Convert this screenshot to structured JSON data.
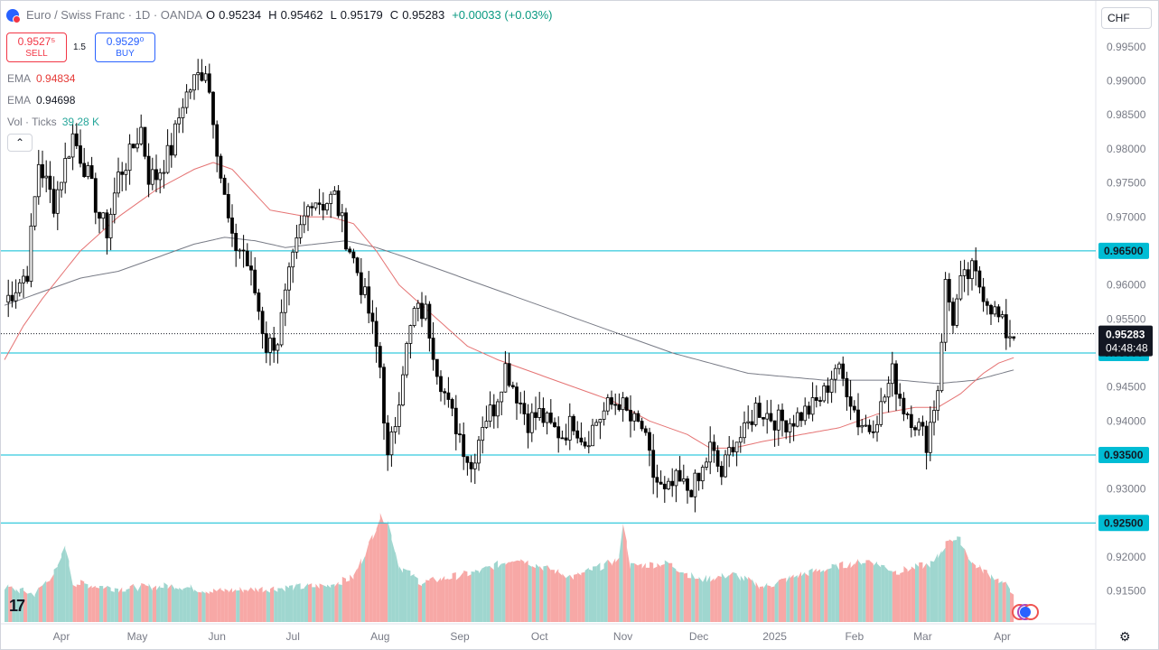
{
  "header": {
    "symbol": "Euro / Swiss Franc · 1D · OANDA",
    "open_label": "O",
    "open": "0.95234",
    "high_label": "H",
    "high": "0.95462",
    "low_label": "L",
    "low": "0.95179",
    "close_label": "C",
    "close": "0.95283",
    "change": "+0.00033 (+0.03%)"
  },
  "trade": {
    "sell_price": "0.9527⁵",
    "sell_label": "SELL",
    "spread": "1.5",
    "buy_price": "0.9529⁰",
    "buy_label": "BUY"
  },
  "indicators": {
    "ema1_label": "EMA",
    "ema1_value": "0.94834",
    "ema2_label": "EMA",
    "ema2_value": "0.94698",
    "vol_label": "Vol · Ticks",
    "vol_value": "39.28 K"
  },
  "controls": {
    "collapse": "⌃",
    "currency": "CHF",
    "settings": "⚙"
  },
  "tv_logo": "17",
  "colors": {
    "up": "#26a69a",
    "down": "#ef5350",
    "candle": "#000000",
    "ema_fast": "#e57373",
    "ema_slow": "#787b86",
    "level_line": "#00bcd4",
    "price_tag": "#131722",
    "vol_up": "#9fd6cf",
    "vol_down": "#f7a8a6"
  },
  "chart_data": {
    "type": "candlestick",
    "instrument": "Euro / Swiss Franc",
    "timeframe": "1D",
    "y_axis": {
      "range": [
        0.9115,
        0.9995
      ],
      "ticks": [
        "0.99500",
        "0.99000",
        "0.98500",
        "0.98000",
        "0.97500",
        "0.97000",
        "0.96500",
        "0.96000",
        "0.95500",
        "0.95000",
        "0.94500",
        "0.94000",
        "0.93500",
        "0.93000",
        "0.92500",
        "0.92000",
        "0.91500"
      ],
      "tick_values": [
        0.995,
        0.99,
        0.985,
        0.98,
        0.975,
        0.97,
        0.965,
        0.96,
        0.955,
        0.95,
        0.945,
        0.94,
        0.935,
        0.93,
        0.925,
        0.92,
        0.915
      ]
    },
    "x_axis": {
      "labels": [
        "Apr",
        "May",
        "Jun",
        "Jul",
        "Aug",
        "Sep",
        "Oct",
        "Nov",
        "Dec",
        "2025",
        "Feb",
        "Mar",
        "Apr"
      ],
      "label_bar_index": [
        15,
        35,
        56,
        76,
        99,
        120,
        141,
        163,
        183,
        203,
        224,
        242,
        263
      ],
      "total_bars": 275
    },
    "levels": [
      {
        "value": 0.965,
        "label": "0.96500"
      },
      {
        "value": 0.95,
        "label": "0.95000"
      },
      {
        "value": 0.935,
        "label": "0.93500"
      },
      {
        "value": 0.925,
        "label": "0.92500"
      }
    ],
    "last_price": {
      "value": 0.95283,
      "label": "0.95283",
      "countdown": "04:48:48"
    },
    "anchors": [
      [
        0,
        0.9575
      ],
      [
        6,
        0.962
      ],
      [
        9,
        0.978
      ],
      [
        13,
        0.972
      ],
      [
        18,
        0.982
      ],
      [
        22,
        0.976
      ],
      [
        25,
        0.97
      ],
      [
        27,
        0.968
      ],
      [
        30,
        0.976
      ],
      [
        33,
        0.979
      ],
      [
        36,
        0.983
      ],
      [
        38,
        0.976
      ],
      [
        40,
        0.976
      ],
      [
        44,
        0.98
      ],
      [
        47,
        0.987
      ],
      [
        50,
        0.99
      ],
      [
        53,
        0.992
      ],
      [
        55,
        0.985
      ],
      [
        57,
        0.976
      ],
      [
        60,
        0.966
      ],
      [
        63,
        0.965
      ],
      [
        66,
        0.959
      ],
      [
        69,
        0.951
      ],
      [
        72,
        0.952
      ],
      [
        75,
        0.961
      ],
      [
        78,
        0.968
      ],
      [
        81,
        0.973
      ],
      [
        84,
        0.972
      ],
      [
        87,
        0.973
      ],
      [
        90,
        0.967
      ],
      [
        93,
        0.962
      ],
      [
        96,
        0.956
      ],
      [
        99,
        0.948
      ],
      [
        101,
        0.934
      ],
      [
        103,
        0.94
      ],
      [
        105,
        0.948
      ],
      [
        108,
        0.956
      ],
      [
        111,
        0.956
      ],
      [
        114,
        0.948
      ],
      [
        117,
        0.942
      ],
      [
        120,
        0.938
      ],
      [
        123,
        0.933
      ],
      [
        126,
        0.94
      ],
      [
        129,
        0.942
      ],
      [
        132,
        0.948
      ],
      [
        135,
        0.944
      ],
      [
        138,
        0.94
      ],
      [
        141,
        0.941
      ],
      [
        144,
        0.939
      ],
      [
        147,
        0.938
      ],
      [
        150,
        0.94
      ],
      [
        153,
        0.937
      ],
      [
        156,
        0.94
      ],
      [
        159,
        0.942
      ],
      [
        162,
        0.943
      ],
      [
        165,
        0.94
      ],
      [
        168,
        0.939
      ],
      [
        171,
        0.932
      ],
      [
        174,
        0.929
      ],
      [
        177,
        0.931
      ],
      [
        180,
        0.93
      ],
      [
        183,
        0.931
      ],
      [
        186,
        0.936
      ],
      [
        189,
        0.932
      ],
      [
        192,
        0.937
      ],
      [
        195,
        0.938
      ],
      [
        198,
        0.942
      ],
      [
        201,
        0.941
      ],
      [
        204,
        0.94
      ],
      [
        207,
        0.94
      ],
      [
        210,
        0.941
      ],
      [
        213,
        0.942
      ],
      [
        216,
        0.944
      ],
      [
        219,
        0.948
      ],
      [
        222,
        0.945
      ],
      [
        225,
        0.94
      ],
      [
        228,
        0.939
      ],
      [
        231,
        0.942
      ],
      [
        234,
        0.947
      ],
      [
        237,
        0.942
      ],
      [
        240,
        0.94
      ],
      [
        243,
        0.937
      ],
      [
        246,
        0.945
      ],
      [
        248,
        0.96
      ],
      [
        250,
        0.955
      ],
      [
        252,
        0.96
      ],
      [
        255,
        0.962
      ],
      [
        257,
        0.96
      ],
      [
        260,
        0.957
      ],
      [
        262,
        0.955
      ],
      [
        264,
        0.953
      ],
      [
        266,
        0.9528
      ]
    ],
    "ema_fast": [
      [
        0,
        0.949
      ],
      [
        5,
        0.954
      ],
      [
        10,
        0.958
      ],
      [
        20,
        0.965
      ],
      [
        30,
        0.97
      ],
      [
        40,
        0.974
      ],
      [
        50,
        0.977
      ],
      [
        55,
        0.978
      ],
      [
        60,
        0.977
      ],
      [
        65,
        0.974
      ],
      [
        70,
        0.971
      ],
      [
        80,
        0.97
      ],
      [
        86,
        0.97
      ],
      [
        92,
        0.969
      ],
      [
        98,
        0.965
      ],
      [
        104,
        0.96
      ],
      [
        110,
        0.957
      ],
      [
        116,
        0.954
      ],
      [
        122,
        0.951
      ],
      [
        130,
        0.949
      ],
      [
        140,
        0.947
      ],
      [
        150,
        0.945
      ],
      [
        160,
        0.943
      ],
      [
        170,
        0.94
      ],
      [
        180,
        0.938
      ],
      [
        186,
        0.936
      ],
      [
        192,
        0.936
      ],
      [
        200,
        0.937
      ],
      [
        210,
        0.938
      ],
      [
        220,
        0.939
      ],
      [
        230,
        0.941
      ],
      [
        240,
        0.942
      ],
      [
        246,
        0.942
      ],
      [
        252,
        0.944
      ],
      [
        258,
        0.947
      ],
      [
        262,
        0.9485
      ],
      [
        266,
        0.9493
      ]
    ],
    "ema_slow": [
      [
        0,
        0.957
      ],
      [
        10,
        0.959
      ],
      [
        20,
        0.961
      ],
      [
        30,
        0.962
      ],
      [
        40,
        0.964
      ],
      [
        50,
        0.966
      ],
      [
        58,
        0.967
      ],
      [
        66,
        0.9665
      ],
      [
        74,
        0.9655
      ],
      [
        82,
        0.966
      ],
      [
        90,
        0.9665
      ],
      [
        98,
        0.9655
      ],
      [
        106,
        0.964
      ],
      [
        116,
        0.962
      ],
      [
        126,
        0.96
      ],
      [
        136,
        0.958
      ],
      [
        146,
        0.956
      ],
      [
        156,
        0.954
      ],
      [
        166,
        0.952
      ],
      [
        176,
        0.95
      ],
      [
        186,
        0.9485
      ],
      [
        196,
        0.947
      ],
      [
        206,
        0.9465
      ],
      [
        216,
        0.946
      ],
      [
        226,
        0.946
      ],
      [
        236,
        0.946
      ],
      [
        246,
        0.9455
      ],
      [
        256,
        0.946
      ],
      [
        266,
        0.9475
      ]
    ],
    "volume": [
      [
        0,
        25
      ],
      [
        8,
        20
      ],
      [
        14,
        38
      ],
      [
        16,
        55
      ],
      [
        18,
        28
      ],
      [
        30,
        24
      ],
      [
        45,
        26
      ],
      [
        55,
        22
      ],
      [
        70,
        24
      ],
      [
        85,
        26
      ],
      [
        92,
        32
      ],
      [
        96,
        55
      ],
      [
        99,
        75
      ],
      [
        101,
        72
      ],
      [
        104,
        40
      ],
      [
        110,
        28
      ],
      [
        125,
        36
      ],
      [
        135,
        46
      ],
      [
        141,
        40
      ],
      [
        150,
        32
      ],
      [
        162,
        45
      ],
      [
        163,
        72
      ],
      [
        165,
        40
      ],
      [
        175,
        42
      ],
      [
        183,
        30
      ],
      [
        192,
        34
      ],
      [
        200,
        25
      ],
      [
        210,
        34
      ],
      [
        220,
        40
      ],
      [
        228,
        44
      ],
      [
        235,
        36
      ],
      [
        245,
        42
      ],
      [
        249,
        60
      ],
      [
        252,
        58
      ],
      [
        255,
        42
      ],
      [
        262,
        30
      ],
      [
        266,
        22
      ]
    ]
  }
}
